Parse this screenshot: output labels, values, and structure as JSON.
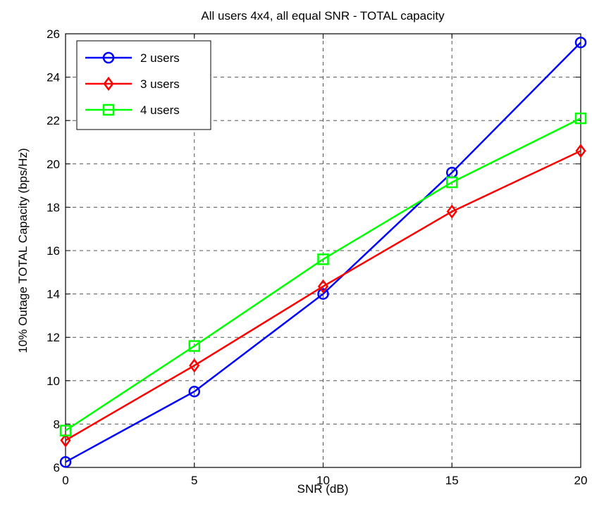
{
  "chart_data": {
    "type": "line",
    "title": "All users 4x4, all equal SNR - TOTAL capacity",
    "xlabel": "SNR (dB)",
    "ylabel": "10% Outage TOTAL Capacity (bps/Hz)",
    "xlim": [
      0,
      20
    ],
    "ylim": [
      6,
      26
    ],
    "xticks": [
      0,
      5,
      10,
      15,
      20
    ],
    "yticks": [
      6,
      8,
      10,
      12,
      14,
      16,
      18,
      20,
      22,
      24,
      26
    ],
    "grid": true,
    "legend_position": "top-left",
    "x": [
      0,
      5,
      10,
      15,
      20
    ],
    "series": [
      {
        "name": "2 users",
        "color": "#0000ff",
        "marker": "circle",
        "values": [
          6.25,
          9.5,
          14.0,
          19.6,
          25.6
        ]
      },
      {
        "name": "3 users",
        "color": "#ff0000",
        "marker": "diamond",
        "values": [
          7.25,
          10.7,
          14.35,
          17.8,
          20.6
        ]
      },
      {
        "name": "4 users",
        "color": "#00ff00",
        "marker": "square",
        "values": [
          7.7,
          11.6,
          15.6,
          19.15,
          22.1
        ]
      }
    ]
  }
}
